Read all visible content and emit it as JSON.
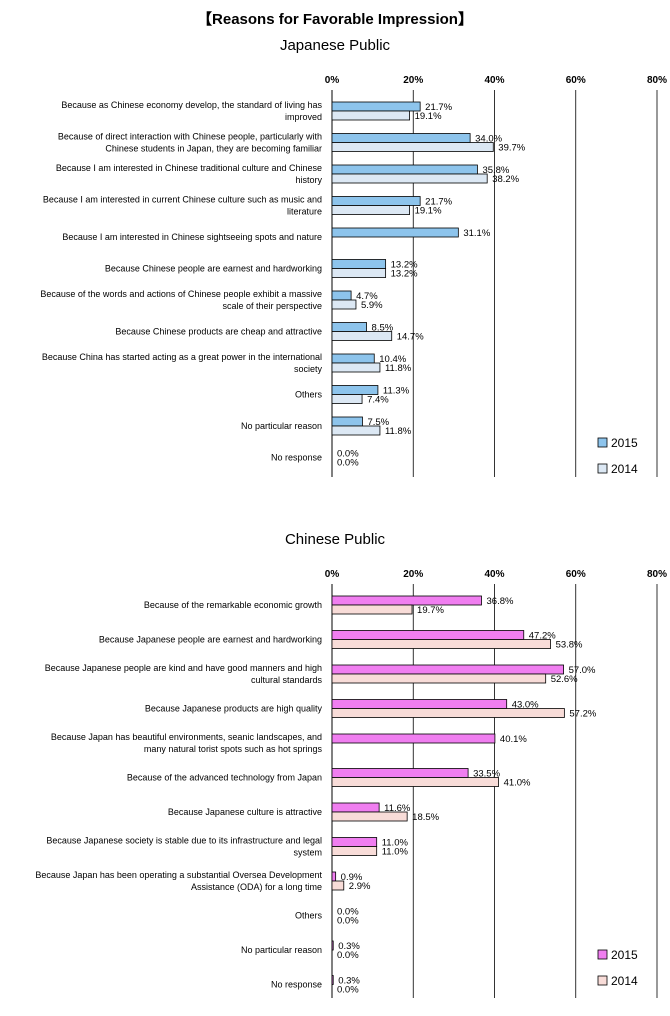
{
  "header": {
    "title": "【Reasons for Favorable Impression】"
  },
  "chart_data": [
    {
      "type": "bar",
      "orientation": "horizontal",
      "title": "Japanese Public",
      "xlim": [
        0,
        80
      ],
      "tick_labels": [
        "0%",
        "20%",
        "40%",
        "60%",
        "80%"
      ],
      "categories": [
        [
          "Because as Chinese economy develop, the standard of living has",
          "improved"
        ],
        [
          "Because of direct interaction with Chinese people, particularly with",
          "Chinese students in Japan, they are becoming familiar"
        ],
        [
          "Because I am interested in Chinese traditional culture and Chinese",
          "history"
        ],
        [
          "Because I am interested in current Chinese culture such as music and",
          "literature"
        ],
        [
          "Because I am interested in Chinese sightseeing spots and nature"
        ],
        [
          "Because Chinese people are earnest and hardworking"
        ],
        [
          "Because of the words and actions of Chinese people exhibit a massive",
          "scale of their perspective"
        ],
        [
          "Because Chinese products are cheap and attractive"
        ],
        [
          "Because China has started acting as a great power in the international",
          "society"
        ],
        [
          "Others"
        ],
        [
          "No particular reason"
        ],
        [
          "No response"
        ]
      ],
      "series": [
        {
          "name": "2015",
          "color": "#8dc4ec",
          "values": [
            21.7,
            34.0,
            35.8,
            21.7,
            31.1,
            13.2,
            4.7,
            8.5,
            10.4,
            11.3,
            7.5,
            0.0
          ],
          "labels": [
            "21.7%",
            "34.0%",
            "35.8%",
            "21.7%",
            "31.1%",
            "13.2%",
            "4.7%",
            "8.5%",
            "10.4%",
            "11.3%",
            "7.5%",
            "0.0%"
          ]
        },
        {
          "name": "2014",
          "color": "#dce8f4",
          "values": [
            19.1,
            39.7,
            38.2,
            19.1,
            null,
            13.2,
            5.9,
            14.7,
            11.8,
            7.4,
            11.8,
            0.0
          ],
          "labels": [
            "19.1%",
            "39.7%",
            "38.2%",
            "19.1%",
            null,
            "13.2%",
            "5.9%",
            "14.7%",
            "11.8%",
            "7.4%",
            "11.8%",
            "0.0%"
          ]
        }
      ],
      "legend_position": "bottom-right"
    },
    {
      "type": "bar",
      "orientation": "horizontal",
      "title": "Chinese Public",
      "xlim": [
        0,
        80
      ],
      "tick_labels": [
        "0%",
        "20%",
        "40%",
        "60%",
        "80%"
      ],
      "categories": [
        [
          "Because of the remarkable economic growth"
        ],
        [
          "Because Japanese people are earnest and hardworking"
        ],
        [
          "Because Japanese people are kind and have good manners and high",
          "cultural standards"
        ],
        [
          "Because Japanese products are high quality"
        ],
        [
          "Because Japan has beautiful environments, seanic landscapes, and",
          "many natural torist spots such as hot springs"
        ],
        [
          "Because of the advanced technology from Japan"
        ],
        [
          "Because Japanese culture is attractive"
        ],
        [
          "Because Japanese society is stable due to its infrastructure and legal",
          "system"
        ],
        [
          "Because Japan has been operating a substantial Oversea Development",
          "Assistance (ODA) for a long time"
        ],
        [
          "Others"
        ],
        [
          "No particular reason"
        ],
        [
          "No response"
        ]
      ],
      "series": [
        {
          "name": "2015",
          "color": "#f07ef0",
          "values": [
            36.8,
            47.2,
            57.0,
            43.0,
            40.1,
            33.5,
            11.6,
            11.0,
            0.9,
            0.0,
            0.3,
            0.3
          ],
          "labels": [
            "36.8%",
            "47.2%",
            "57.0%",
            "43.0%",
            "40.1%",
            "33.5%",
            "11.6%",
            "11.0%",
            "0.9%",
            "0.0%",
            "0.3%",
            "0.3%"
          ]
        },
        {
          "name": "2014",
          "color": "#f8dcd8",
          "values": [
            19.7,
            53.8,
            52.6,
            57.2,
            null,
            41.0,
            18.5,
            11.0,
            2.9,
            0.0,
            0.0,
            0.0
          ],
          "labels": [
            "19.7%",
            "53.8%",
            "52.6%",
            "57.2%",
            null,
            "41.0%",
            "18.5%",
            "11.0%",
            "2.9%",
            "0.0%",
            "0.0%",
            "0.0%"
          ]
        }
      ],
      "legend_position": "bottom-right"
    }
  ]
}
